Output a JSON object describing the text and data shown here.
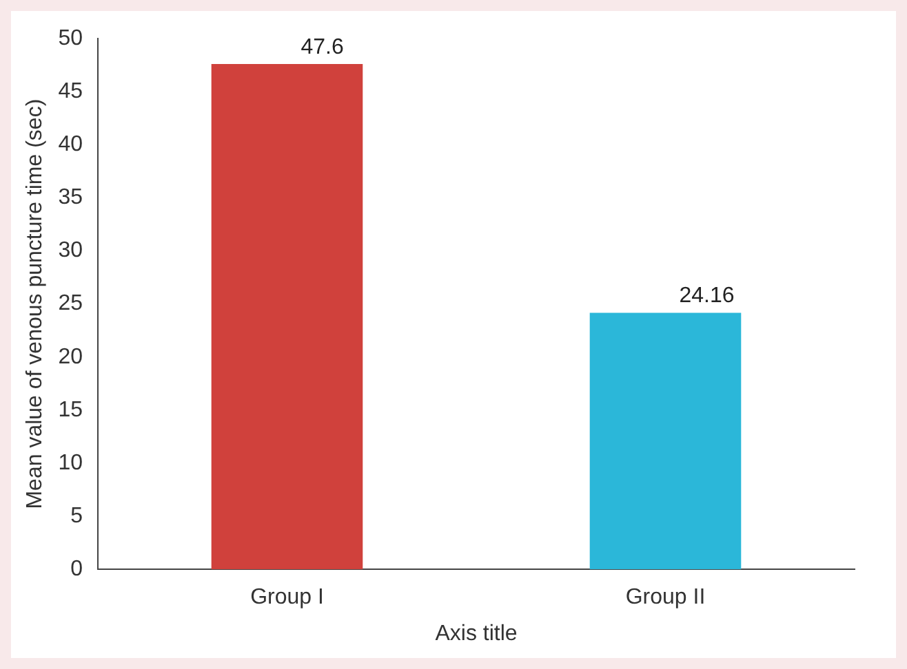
{
  "chart_data": {
    "type": "bar",
    "categories": [
      "Group I",
      "Group II"
    ],
    "colors": [
      "#d0413c",
      "#2bb7d9"
    ],
    "values": [
      47.6,
      24.16
    ],
    "data_labels": true,
    "xlabel": "Axis title",
    "ylabel": "Mean value of venous puncture time (sec)",
    "ylim": [
      0,
      50
    ],
    "yticks": [
      0,
      5,
      10,
      15,
      20,
      25,
      30,
      35,
      40,
      45,
      50
    ],
    "grid": false,
    "legend": false
  }
}
